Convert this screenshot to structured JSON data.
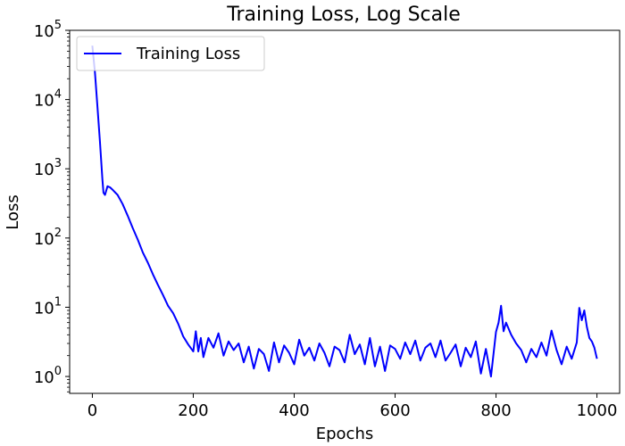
{
  "chart_data": {
    "type": "line",
    "title": "Training Loss, Log Scale",
    "xlabel": "Epochs",
    "ylabel": "Loss",
    "xlim": [
      -45,
      1045
    ],
    "ylim": [
      0.57,
      100000
    ],
    "yscale": "log",
    "grid": false,
    "legend_position": "top-left",
    "x_ticks": [
      0,
      200,
      400,
      600,
      800,
      1000
    ],
    "x_tick_labels": [
      "0",
      "200",
      "400",
      "600",
      "800",
      "1000"
    ],
    "y_ticks": [
      1,
      10,
      100,
      1000,
      10000,
      100000
    ],
    "y_tick_labels": [
      {
        "base": "10",
        "exp": "0"
      },
      {
        "base": "10",
        "exp": "1"
      },
      {
        "base": "10",
        "exp": "2"
      },
      {
        "base": "10",
        "exp": "3"
      },
      {
        "base": "10",
        "exp": "4"
      },
      {
        "base": "10",
        "exp": "5"
      }
    ],
    "series": [
      {
        "name": "Training Loss",
        "color": "#0000ff",
        "x": [
          0,
          5,
          10,
          15,
          20,
          22,
          25,
          28,
          30,
          35,
          40,
          50,
          60,
          70,
          80,
          90,
          100,
          110,
          120,
          130,
          140,
          150,
          160,
          170,
          180,
          190,
          200,
          205,
          210,
          215,
          220,
          230,
          240,
          250,
          260,
          270,
          280,
          290,
          300,
          310,
          320,
          330,
          340,
          350,
          360,
          370,
          380,
          390,
          400,
          410,
          420,
          430,
          440,
          450,
          460,
          470,
          480,
          490,
          500,
          510,
          520,
          530,
          540,
          550,
          560,
          570,
          580,
          590,
          600,
          610,
          620,
          630,
          640,
          650,
          660,
          670,
          680,
          690,
          700,
          710,
          720,
          730,
          740,
          750,
          760,
          770,
          780,
          790,
          800,
          805,
          810,
          815,
          820,
          830,
          840,
          850,
          860,
          870,
          880,
          890,
          900,
          910,
          920,
          930,
          940,
          950,
          960,
          965,
          970,
          975,
          980,
          985,
          990,
          995,
          1000
        ],
        "y": [
          60000,
          25000,
          8000,
          2500,
          700,
          450,
          420,
          500,
          560,
          540,
          500,
          420,
          310,
          210,
          140,
          95,
          62,
          44,
          30,
          21,
          15,
          10.5,
          8.2,
          5.8,
          3.8,
          2.9,
          2.3,
          4.5,
          2.3,
          3.6,
          1.9,
          3.6,
          2.6,
          4.2,
          2.0,
          3.2,
          2.4,
          3.0,
          1.6,
          2.7,
          1.3,
          2.5,
          2.1,
          1.2,
          3.1,
          1.6,
          2.8,
          2.2,
          1.5,
          3.4,
          2.0,
          2.6,
          1.7,
          3.0,
          2.2,
          1.4,
          2.7,
          2.4,
          1.6,
          4.0,
          2.1,
          2.9,
          1.5,
          3.6,
          1.4,
          2.7,
          1.2,
          2.8,
          2.5,
          1.8,
          3.1,
          2.1,
          3.3,
          1.7,
          2.6,
          3.0,
          1.9,
          3.3,
          1.7,
          2.2,
          2.9,
          1.4,
          2.6,
          1.9,
          3.2,
          1.1,
          2.5,
          1.0,
          4.4,
          6.0,
          10.5,
          4.5,
          6.0,
          4.0,
          3.0,
          2.4,
          1.6,
          2.5,
          1.9,
          3.1,
          2.0,
          4.6,
          2.4,
          1.5,
          2.7,
          1.8,
          3.1,
          9.8,
          6.5,
          9.0,
          5.2,
          3.6,
          3.2,
          2.6,
          1.8
        ]
      }
    ]
  }
}
